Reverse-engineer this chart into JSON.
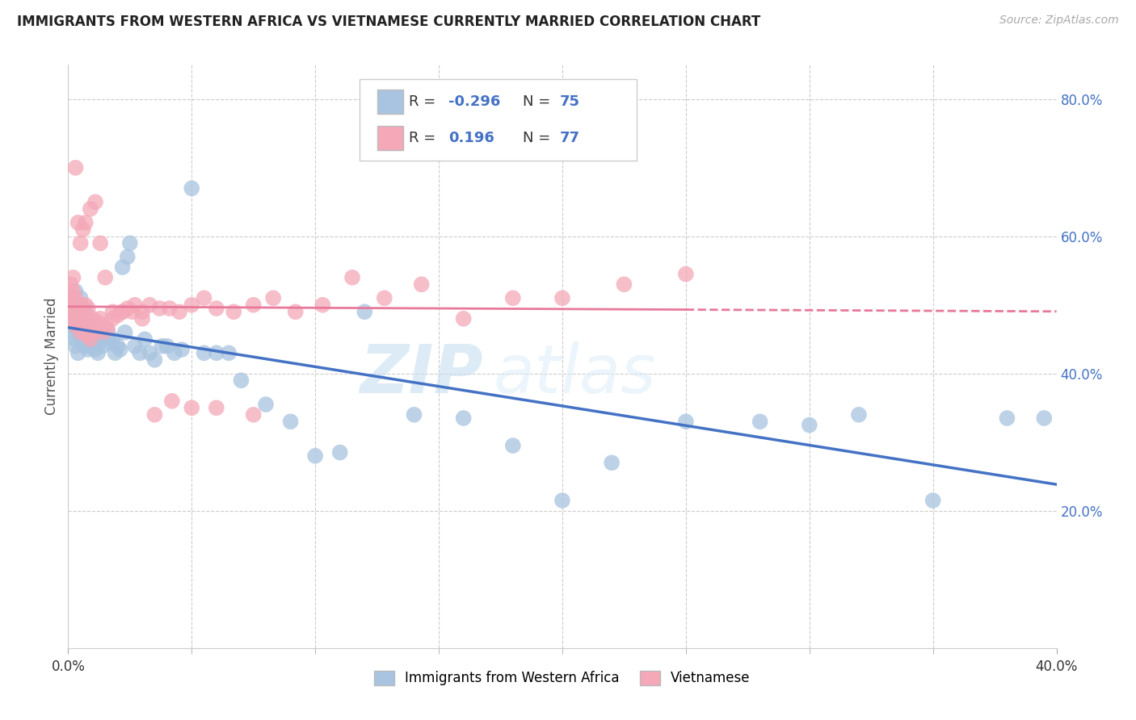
{
  "title": "IMMIGRANTS FROM WESTERN AFRICA VS VIETNAMESE CURRENTLY MARRIED CORRELATION CHART",
  "source": "Source: ZipAtlas.com",
  "ylabel": "Currently Married",
  "xlabel_blue": "Immigrants from Western Africa",
  "xlabel_pink": "Vietnamese",
  "xlim": [
    0.0,
    0.4
  ],
  "ylim": [
    0.0,
    0.85
  ],
  "xtick_positions": [
    0.0,
    0.4
  ],
  "xtick_labels": [
    "0.0%",
    "40.0%"
  ],
  "yticks_right": [
    0.2,
    0.4,
    0.6,
    0.8
  ],
  "ytick_labels_right": [
    "20.0%",
    "40.0%",
    "60.0%",
    "80.0%"
  ],
  "R_blue": -0.296,
  "N_blue": 75,
  "R_pink": 0.196,
  "N_pink": 77,
  "blue_color": "#a8c4e0",
  "pink_color": "#f4a8b8",
  "blue_line_color": "#4472c4",
  "pink_line_color": "#e8799a",
  "watermark": "ZIPatlas",
  "blue_scatter_x": [
    0.001,
    0.001,
    0.002,
    0.002,
    0.002,
    0.003,
    0.003,
    0.003,
    0.003,
    0.004,
    0.004,
    0.004,
    0.005,
    0.005,
    0.005,
    0.006,
    0.006,
    0.006,
    0.007,
    0.007,
    0.007,
    0.008,
    0.008,
    0.008,
    0.009,
    0.009,
    0.01,
    0.01,
    0.011,
    0.011,
    0.012,
    0.013,
    0.014,
    0.015,
    0.016,
    0.017,
    0.018,
    0.019,
    0.02,
    0.021,
    0.022,
    0.023,
    0.024,
    0.025,
    0.027,
    0.029,
    0.031,
    0.033,
    0.035,
    0.038,
    0.04,
    0.043,
    0.046,
    0.05,
    0.055,
    0.06,
    0.065,
    0.07,
    0.08,
    0.09,
    0.1,
    0.11,
    0.12,
    0.14,
    0.16,
    0.18,
    0.2,
    0.22,
    0.25,
    0.28,
    0.3,
    0.32,
    0.35,
    0.38,
    0.395
  ],
  "blue_scatter_y": [
    0.47,
    0.5,
    0.46,
    0.49,
    0.51,
    0.45,
    0.48,
    0.52,
    0.44,
    0.465,
    0.495,
    0.43,
    0.455,
    0.485,
    0.51,
    0.445,
    0.47,
    0.495,
    0.44,
    0.465,
    0.49,
    0.435,
    0.46,
    0.48,
    0.44,
    0.46,
    0.445,
    0.475,
    0.435,
    0.455,
    0.43,
    0.45,
    0.44,
    0.455,
    0.46,
    0.445,
    0.45,
    0.43,
    0.44,
    0.435,
    0.555,
    0.46,
    0.57,
    0.59,
    0.44,
    0.43,
    0.45,
    0.43,
    0.42,
    0.44,
    0.44,
    0.43,
    0.435,
    0.67,
    0.43,
    0.43,
    0.43,
    0.39,
    0.355,
    0.33,
    0.28,
    0.285,
    0.49,
    0.34,
    0.335,
    0.295,
    0.215,
    0.27,
    0.33,
    0.33,
    0.325,
    0.34,
    0.215,
    0.335,
    0.335
  ],
  "pink_scatter_x": [
    0.001,
    0.001,
    0.001,
    0.002,
    0.002,
    0.002,
    0.002,
    0.003,
    0.003,
    0.003,
    0.003,
    0.004,
    0.004,
    0.004,
    0.005,
    0.005,
    0.005,
    0.006,
    0.006,
    0.006,
    0.007,
    0.007,
    0.007,
    0.008,
    0.008,
    0.008,
    0.009,
    0.009,
    0.01,
    0.01,
    0.011,
    0.012,
    0.013,
    0.014,
    0.015,
    0.016,
    0.018,
    0.02,
    0.022,
    0.024,
    0.027,
    0.03,
    0.033,
    0.037,
    0.041,
    0.045,
    0.05,
    0.055,
    0.06,
    0.067,
    0.075,
    0.083,
    0.092,
    0.103,
    0.115,
    0.128,
    0.143,
    0.16,
    0.18,
    0.2,
    0.225,
    0.25,
    0.005,
    0.007,
    0.009,
    0.011,
    0.013,
    0.015,
    0.018,
    0.022,
    0.026,
    0.03,
    0.035,
    0.042,
    0.05,
    0.06,
    0.075
  ],
  "pink_scatter_y": [
    0.49,
    0.51,
    0.53,
    0.48,
    0.5,
    0.52,
    0.54,
    0.47,
    0.49,
    0.51,
    0.7,
    0.475,
    0.495,
    0.62,
    0.46,
    0.48,
    0.5,
    0.465,
    0.485,
    0.61,
    0.46,
    0.48,
    0.5,
    0.455,
    0.475,
    0.495,
    0.45,
    0.47,
    0.46,
    0.48,
    0.47,
    0.475,
    0.48,
    0.46,
    0.47,
    0.465,
    0.49,
    0.485,
    0.49,
    0.495,
    0.5,
    0.49,
    0.5,
    0.495,
    0.495,
    0.49,
    0.5,
    0.51,
    0.495,
    0.49,
    0.5,
    0.51,
    0.49,
    0.5,
    0.54,
    0.51,
    0.53,
    0.48,
    0.51,
    0.51,
    0.53,
    0.545,
    0.59,
    0.62,
    0.64,
    0.65,
    0.59,
    0.54,
    0.48,
    0.49,
    0.49,
    0.48,
    0.34,
    0.36,
    0.35,
    0.35,
    0.34
  ]
}
